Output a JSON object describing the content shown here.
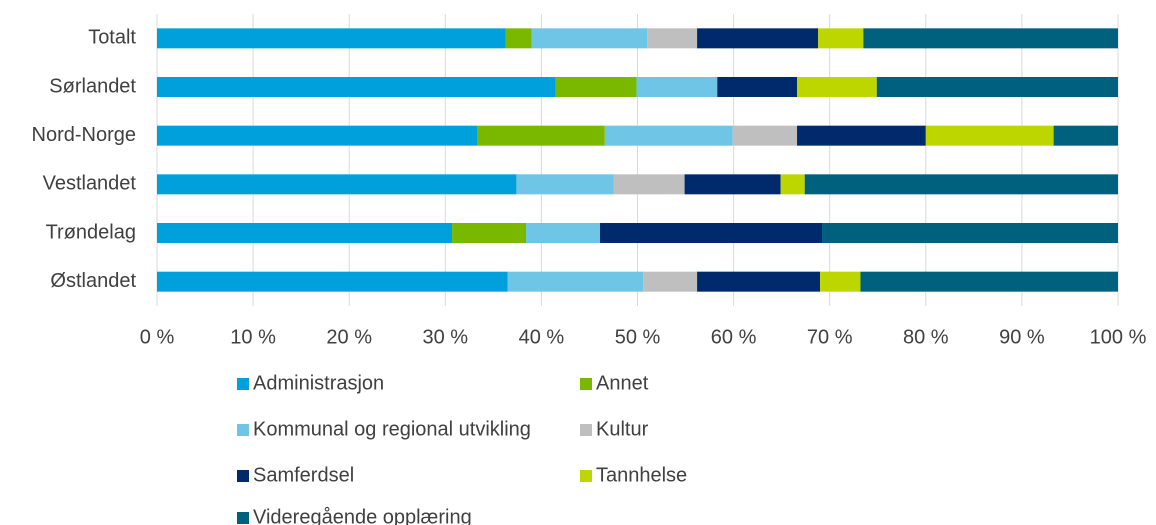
{
  "chart_data": {
    "type": "stacked_barh",
    "categories": [
      "Totalt",
      "Sørlandet",
      "Nord-Norge",
      "Vestlandet",
      "Trøndelag",
      "Østlandet"
    ],
    "series": [
      {
        "name": "Administrasjon",
        "color": "#00a0dc",
        "values": [
          36.3,
          41.5,
          33.3,
          37.4,
          30.7,
          36.5
        ]
      },
      {
        "name": "Annet",
        "color": "#7ab800",
        "values": [
          2.7,
          8.4,
          13.3,
          0,
          7.7,
          0
        ]
      },
      {
        "name": "Kommunal og regional utvikling",
        "color": "#6fc5e6",
        "values": [
          12.0,
          8.4,
          13.3,
          10.1,
          7.7,
          14.1
        ]
      },
      {
        "name": "Kultur",
        "color": "#bfbfbf",
        "values": [
          5.2,
          0,
          6.7,
          7.4,
          0,
          5.6
        ]
      },
      {
        "name": "Samferdsel",
        "color": "#002a6c",
        "values": [
          12.6,
          8.3,
          13.4,
          10.0,
          23.1,
          12.8
        ]
      },
      {
        "name": "Tannhelse",
        "color": "#bdd600",
        "values": [
          4.7,
          8.3,
          13.3,
          2.5,
          0,
          4.2
        ]
      },
      {
        "name": "Videregående opplæring",
        "color": "#00617f",
        "values": [
          26.5,
          25.1,
          6.7,
          32.6,
          30.8,
          26.8
        ]
      }
    ],
    "xlim": [
      0,
      100
    ],
    "xticks": [
      {
        "value": 0,
        "label": "0 %"
      },
      {
        "value": 10,
        "label": "10 %"
      },
      {
        "value": 20,
        "label": "20 %"
      },
      {
        "value": 30,
        "label": "30 %"
      },
      {
        "value": 40,
        "label": "40 %"
      },
      {
        "value": 50,
        "label": "50 %"
      },
      {
        "value": 60,
        "label": "60 %"
      },
      {
        "value": 70,
        "label": "70 %"
      },
      {
        "value": 80,
        "label": "80 %"
      },
      {
        "value": 90,
        "label": "90 %"
      },
      {
        "value": 100,
        "label": "100 %"
      }
    ],
    "grid": true,
    "legend": "bottom"
  }
}
